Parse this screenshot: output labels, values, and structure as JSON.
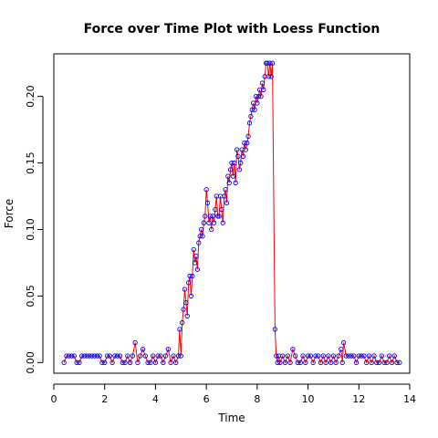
{
  "chart_data": {
    "type": "scatter",
    "title": "Force over Time Plot with Loess Function",
    "xlabel": "Time",
    "ylabel": "Force",
    "xlim": [
      0,
      14
    ],
    "ylim": [
      -0.008,
      0.232
    ],
    "xticks": [
      "0",
      "2",
      "4",
      "6",
      "8",
      "10",
      "12",
      "14"
    ],
    "yticks": [
      "0.00",
      "0.05",
      "0.10",
      "0.15",
      "0.20"
    ],
    "grid": false,
    "legend": "none",
    "point_color": "#0000FF",
    "line_color": "#FF0000",
    "series": [
      {
        "points": [
          [
            0.4,
            0.0
          ],
          [
            0.5,
            0.005
          ],
          [
            0.6,
            0.005
          ],
          [
            0.7,
            0.005
          ],
          [
            0.8,
            0.005
          ],
          [
            0.9,
            0.0
          ],
          [
            1.0,
            0.0
          ],
          [
            1.1,
            0.005
          ],
          [
            1.2,
            0.005
          ],
          [
            1.3,
            0.005
          ],
          [
            1.4,
            0.005
          ],
          [
            1.5,
            0.005
          ],
          [
            1.6,
            0.005
          ],
          [
            1.7,
            0.005
          ],
          [
            1.8,
            0.005
          ],
          [
            1.9,
            0.0
          ],
          [
            2.0,
            0.0
          ],
          [
            2.1,
            0.005
          ],
          [
            2.2,
            0.005
          ],
          [
            2.3,
            0.0
          ],
          [
            2.4,
            0.005
          ],
          [
            2.5,
            0.005
          ],
          [
            2.6,
            0.005
          ],
          [
            2.7,
            0.0
          ],
          [
            2.8,
            0.0
          ],
          [
            2.9,
            0.005
          ],
          [
            3.0,
            0.0
          ],
          [
            3.1,
            0.005
          ],
          [
            3.2,
            0.015
          ],
          [
            3.3,
            0.0
          ],
          [
            3.4,
            0.005
          ],
          [
            3.5,
            0.01
          ],
          [
            3.6,
            0.005
          ],
          [
            3.7,
            0.0
          ],
          [
            3.8,
            0.0
          ],
          [
            3.9,
            0.005
          ],
          [
            4.0,
            0.0
          ],
          [
            4.1,
            0.005
          ],
          [
            4.2,
            0.005
          ],
          [
            4.3,
            0.0
          ],
          [
            4.4,
            0.005
          ],
          [
            4.5,
            0.01
          ],
          [
            4.6,
            0.0
          ],
          [
            4.7,
            0.005
          ],
          [
            4.8,
            0.0
          ],
          [
            4.9,
            0.005
          ],
          [
            4.95,
            0.025
          ],
          [
            5.0,
            0.005
          ],
          [
            5.05,
            0.03
          ],
          [
            5.1,
            0.04
          ],
          [
            5.15,
            0.055
          ],
          [
            5.2,
            0.045
          ],
          [
            5.25,
            0.035
          ],
          [
            5.3,
            0.06
          ],
          [
            5.35,
            0.065
          ],
          [
            5.4,
            0.05
          ],
          [
            5.45,
            0.065
          ],
          [
            5.5,
            0.085
          ],
          [
            5.55,
            0.075
          ],
          [
            5.6,
            0.08
          ],
          [
            5.65,
            0.07
          ],
          [
            5.7,
            0.09
          ],
          [
            5.75,
            0.095
          ],
          [
            5.8,
            0.1
          ],
          [
            5.85,
            0.095
          ],
          [
            5.9,
            0.105
          ],
          [
            5.95,
            0.11
          ],
          [
            6.0,
            0.13
          ],
          [
            6.05,
            0.12
          ],
          [
            6.1,
            0.105
          ],
          [
            6.15,
            0.11
          ],
          [
            6.2,
            0.1
          ],
          [
            6.25,
            0.11
          ],
          [
            6.3,
            0.105
          ],
          [
            6.35,
            0.115
          ],
          [
            6.4,
            0.125
          ],
          [
            6.45,
            0.11
          ],
          [
            6.5,
            0.11
          ],
          [
            6.55,
            0.125
          ],
          [
            6.6,
            0.115
          ],
          [
            6.65,
            0.105
          ],
          [
            6.7,
            0.125
          ],
          [
            6.75,
            0.13
          ],
          [
            6.8,
            0.12
          ],
          [
            6.85,
            0.14
          ],
          [
            6.9,
            0.135
          ],
          [
            6.95,
            0.145
          ],
          [
            7.0,
            0.15
          ],
          [
            7.05,
            0.14
          ],
          [
            7.1,
            0.15
          ],
          [
            7.15,
            0.135
          ],
          [
            7.2,
            0.16
          ],
          [
            7.25,
            0.155
          ],
          [
            7.3,
            0.145
          ],
          [
            7.35,
            0.15
          ],
          [
            7.4,
            0.16
          ],
          [
            7.45,
            0.155
          ],
          [
            7.5,
            0.165
          ],
          [
            7.55,
            0.16
          ],
          [
            7.6,
            0.165
          ],
          [
            7.65,
            0.17
          ],
          [
            7.7,
            0.18
          ],
          [
            7.75,
            0.185
          ],
          [
            7.8,
            0.19
          ],
          [
            7.85,
            0.195
          ],
          [
            7.9,
            0.19
          ],
          [
            7.95,
            0.2
          ],
          [
            8.0,
            0.195
          ],
          [
            8.05,
            0.2
          ],
          [
            8.1,
            0.205
          ],
          [
            8.15,
            0.2
          ],
          [
            8.2,
            0.21
          ],
          [
            8.25,
            0.205
          ],
          [
            8.3,
            0.215
          ],
          [
            8.35,
            0.225
          ],
          [
            8.4,
            0.225
          ],
          [
            8.45,
            0.215
          ],
          [
            8.5,
            0.225
          ],
          [
            8.55,
            0.215
          ],
          [
            8.6,
            0.225
          ],
          [
            8.7,
            0.025
          ],
          [
            8.75,
            0.005
          ],
          [
            8.8,
            0.0
          ],
          [
            8.85,
            0.005
          ],
          [
            8.9,
            0.0
          ],
          [
            9.0,
            0.005
          ],
          [
            9.1,
            0.0
          ],
          [
            9.2,
            0.005
          ],
          [
            9.3,
            0.0
          ],
          [
            9.4,
            0.01
          ],
          [
            9.5,
            0.005
          ],
          [
            9.6,
            0.0
          ],
          [
            9.7,
            0.0
          ],
          [
            9.8,
            0.005
          ],
          [
            9.9,
            0.0
          ],
          [
            10.0,
            0.005
          ],
          [
            10.1,
            0.005
          ],
          [
            10.2,
            0.0
          ],
          [
            10.3,
            0.005
          ],
          [
            10.4,
            0.005
          ],
          [
            10.5,
            0.0
          ],
          [
            10.6,
            0.005
          ],
          [
            10.7,
            0.0
          ],
          [
            10.8,
            0.005
          ],
          [
            10.9,
            0.0
          ],
          [
            11.0,
            0.005
          ],
          [
            11.1,
            0.0
          ],
          [
            11.2,
            0.005
          ],
          [
            11.3,
            0.01
          ],
          [
            11.35,
            0.0
          ],
          [
            11.4,
            0.015
          ],
          [
            11.5,
            0.005
          ],
          [
            11.6,
            0.005
          ],
          [
            11.7,
            0.005
          ],
          [
            11.8,
            0.005
          ],
          [
            11.9,
            0.0
          ],
          [
            12.0,
            0.005
          ],
          [
            12.1,
            0.005
          ],
          [
            12.2,
            0.005
          ],
          [
            12.3,
            0.0
          ],
          [
            12.4,
            0.005
          ],
          [
            12.5,
            0.0
          ],
          [
            12.6,
            0.005
          ],
          [
            12.7,
            0.0
          ],
          [
            12.8,
            0.0
          ],
          [
            12.9,
            0.005
          ],
          [
            13.0,
            0.0
          ],
          [
            13.1,
            0.0
          ],
          [
            13.2,
            0.005
          ],
          [
            13.3,
            0.0
          ],
          [
            13.4,
            0.005
          ],
          [
            13.5,
            0.0
          ],
          [
            13.6,
            0.0
          ]
        ]
      }
    ]
  }
}
